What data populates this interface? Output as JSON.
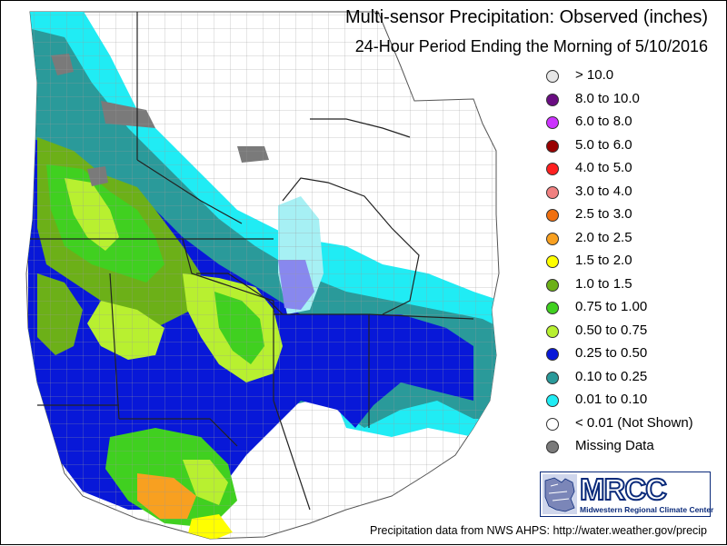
{
  "title": {
    "main": "Multi-sensor Precipitation:  Observed (inches)",
    "sub": "24-Hour Period Ending the Morning of 5/10/2016"
  },
  "legend": [
    {
      "label": "> 10.0",
      "color": "#e6e6e6"
    },
    {
      "label": "8.0 to 10.0",
      "color": "#6a0d82"
    },
    {
      "label": "6.0 to 8.0",
      "color": "#cc33ff"
    },
    {
      "label": "5.0 to 6.0",
      "color": "#990000"
    },
    {
      "label": "4.0 to 5.0",
      "color": "#ff2020"
    },
    {
      "label": "3.0 to 4.0",
      "color": "#f08080"
    },
    {
      "label": "2.5 to 3.0",
      "color": "#f07010"
    },
    {
      "label": "2.0 to 2.5",
      "color": "#f8a020"
    },
    {
      "label": "1.5 to 2.0",
      "color": "#ffff00"
    },
    {
      "label": "1.0 to 1.5",
      "color": "#6cb018"
    },
    {
      "label": "0.75 to 1.00",
      "color": "#40d020"
    },
    {
      "label": "0.50 to 0.75",
      "color": "#b8f030"
    },
    {
      "label": "0.25 to 0.50",
      "color": "#0818d8"
    },
    {
      "label": "0.10 to 0.25",
      "color": "#2a9a9a"
    },
    {
      "label": "0.01 to 0.10",
      "color": "#20ecf4"
    },
    {
      "label": "< 0.01 (Not Shown)",
      "color": "#ffffff"
    },
    {
      "label": "Missing Data",
      "color": "#7a7a7a"
    }
  ],
  "logo": {
    "text": "MRCC",
    "subtitle": "Midwestern Regional Climate Center"
  },
  "footer": "Precipitation data from NWS AHPS: http://water.weather.gov/precip"
}
